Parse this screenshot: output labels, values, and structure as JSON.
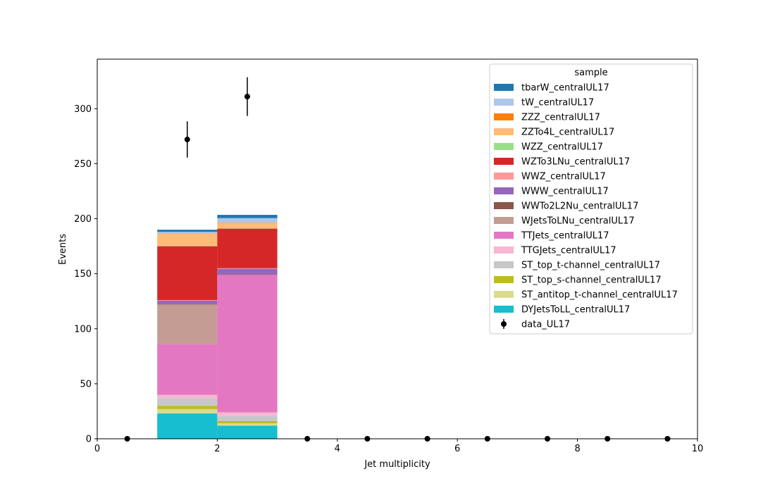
{
  "chart_data": {
    "type": "bar",
    "stacked": true,
    "xlabel": "Jet multiplicity",
    "ylabel": "Events",
    "xlim": [
      0,
      10
    ],
    "ylim": [
      0,
      345
    ],
    "xticks": [
      0,
      2,
      4,
      6,
      8,
      10
    ],
    "yticks": [
      0,
      50,
      100,
      150,
      200,
      250,
      300
    ],
    "grid": false,
    "legend_title": "sample",
    "legend_position": "top-right",
    "bins": [
      [
        1,
        2
      ],
      [
        2,
        3
      ]
    ],
    "series": [
      {
        "name": "DYJetsToLL_centralUL17",
        "color": "#17becf",
        "values": [
          23,
          12
        ]
      },
      {
        "name": "ST_antitop_t-channel_centralUL17",
        "color": "#dbdb8d",
        "values": [
          4,
          2
        ]
      },
      {
        "name": "ST_top_s-channel_centralUL17",
        "color": "#bcbd22",
        "values": [
          3,
          2
        ]
      },
      {
        "name": "ST_top_t-channel_centralUL17",
        "color": "#c7c7c7",
        "values": [
          7,
          5
        ]
      },
      {
        "name": "TTGJets_centralUL17",
        "color": "#f7b6d2",
        "values": [
          3,
          3
        ]
      },
      {
        "name": "TTJets_centralUL17",
        "color": "#e377c2",
        "values": [
          46,
          125
        ]
      },
      {
        "name": "WJetsToLNu_centralUL17",
        "color": "#c49c94",
        "values": [
          36,
          0
        ]
      },
      {
        "name": "WWTo2L2Nu_centralUL17",
        "color": "#8c564b",
        "values": [
          0.5,
          0.5
        ]
      },
      {
        "name": "WWW_centralUL17",
        "color": "#9467bd",
        "values": [
          3,
          5
        ]
      },
      {
        "name": "WWZ_centralUL17",
        "color": "#ff9896",
        "values": [
          0.5,
          0.5
        ]
      },
      {
        "name": "WZTo3LNu_centralUL17",
        "color": "#d62728",
        "values": [
          49,
          36
        ]
      },
      {
        "name": "WZZ_centralUL17",
        "color": "#98df8a",
        "values": [
          0.3,
          0.3
        ]
      },
      {
        "name": "ZZTo4L_centralUL17",
        "color": "#ffbb78",
        "values": [
          11,
          5
        ]
      },
      {
        "name": "ZZZ_centralUL17",
        "color": "#ff7f0e",
        "values": [
          0.2,
          0.2
        ]
      },
      {
        "name": "tW_centralUL17",
        "color": "#aec7e8",
        "values": [
          1.5,
          4
        ]
      },
      {
        "name": "tbarW_centralUL17",
        "color": "#1f77b4",
        "values": [
          2,
          3
        ]
      }
    ],
    "data": {
      "name": "data_UL17",
      "color": "#000000",
      "x": [
        0.5,
        1.5,
        2.5,
        3.5,
        4.5,
        5.5,
        6.5,
        7.5,
        8.5,
        9.5
      ],
      "y": [
        0,
        272,
        311,
        0,
        0,
        0,
        0,
        0,
        0,
        0
      ],
      "yerr": [
        0,
        16.5,
        17.6,
        0,
        0,
        0,
        0,
        0,
        0,
        0
      ]
    }
  }
}
